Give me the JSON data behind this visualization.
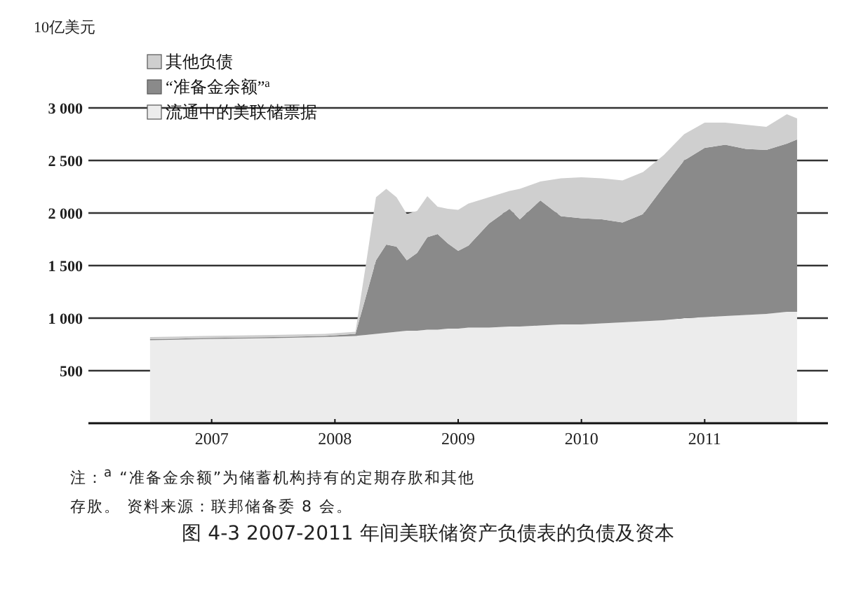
{
  "chart_data": {
    "type": "area",
    "stacked": true,
    "title": "图 4-3 2007-2011 年间美联储资产负债表的负债及资本",
    "ylabel": "10亿美元",
    "annotations": [
      "注：$^{a}$ “准备金余额”为储蓄机构持有的定期存肷和其他存肷。 资料来源：联邦储备委 8 会。"
    ],
    "x": [
      "2007-01",
      "2007-06",
      "2008-01",
      "2008-06",
      "2008-09",
      "2008-10",
      "2008-11",
      "2008-12",
      "2009-01",
      "2009-02",
      "2009-03",
      "2009-04",
      "2009-05",
      "2009-06",
      "2009-07",
      "2009-08",
      "2009-10",
      "2009-12",
      "2010-01",
      "2010-03",
      "2010-05",
      "2010-07",
      "2010-09",
      "2010-11",
      "2011-01",
      "2011-03",
      "2011-05",
      "2011-07",
      "2011-09",
      "2011-11",
      "2012-01",
      "2012-03",
      "2012-04"
    ],
    "series": [
      {
        "name": "流通中的美联储票据",
        "color": "#ececec",
        "values": [
          790,
          800,
          810,
          820,
          830,
          840,
          850,
          860,
          870,
          880,
          880,
          890,
          890,
          900,
          900,
          910,
          910,
          920,
          920,
          930,
          940,
          940,
          950,
          960,
          970,
          980,
          1000,
          1010,
          1020,
          1030,
          1040,
          1060,
          1060
        ]
      },
      {
        "name": "“准备金余额”$^{a}$",
        "color": "#8a8a8a",
        "values": [
          10,
          10,
          10,
          10,
          20,
          360,
          700,
          840,
          810,
          670,
          740,
          880,
          910,
          810,
          740,
          780,
          990,
          1120,
          1020,
          1190,
          1030,
          1010,
          990,
          950,
          1020,
          1270,
          1500,
          1610,
          1630,
          1580,
          1560,
          1600,
          1640
        ]
      },
      {
        "name": "其他负债",
        "color": "#cfcfcf",
        "values": [
          20,
          20,
          20,
          20,
          20,
          300,
          600,
          530,
          470,
          440,
          400,
          390,
          260,
          330,
          390,
          400,
          250,
          170,
          290,
          180,
          360,
          390,
          390,
          400,
          400,
          300,
          250,
          240,
          210,
          230,
          220,
          280,
          200
        ]
      }
    ],
    "xlim": [
      "2006-07",
      "2012-07"
    ],
    "xticks": [
      {
        "value": "2007-07",
        "label": "2007"
      },
      {
        "value": "2008-07",
        "label": "2008"
      },
      {
        "value": "2009-07",
        "label": "2009"
      },
      {
        "value": "2010-07",
        "label": "2010"
      },
      {
        "value": "2011-07",
        "label": "2011"
      }
    ],
    "ylim": [
      0,
      3000
    ],
    "yticks": [
      500,
      {
        "value": 1000,
        "label": "1 000"
      },
      {
        "value": 1500,
        "label": "1 500"
      },
      {
        "value": 2000,
        "label": "2 000"
      },
      {
        "value": 2500,
        "label": "2 500"
      },
      {
        "value": 3000,
        "label": "3 000"
      }
    ],
    "grid": "y",
    "legend": "top left"
  }
}
